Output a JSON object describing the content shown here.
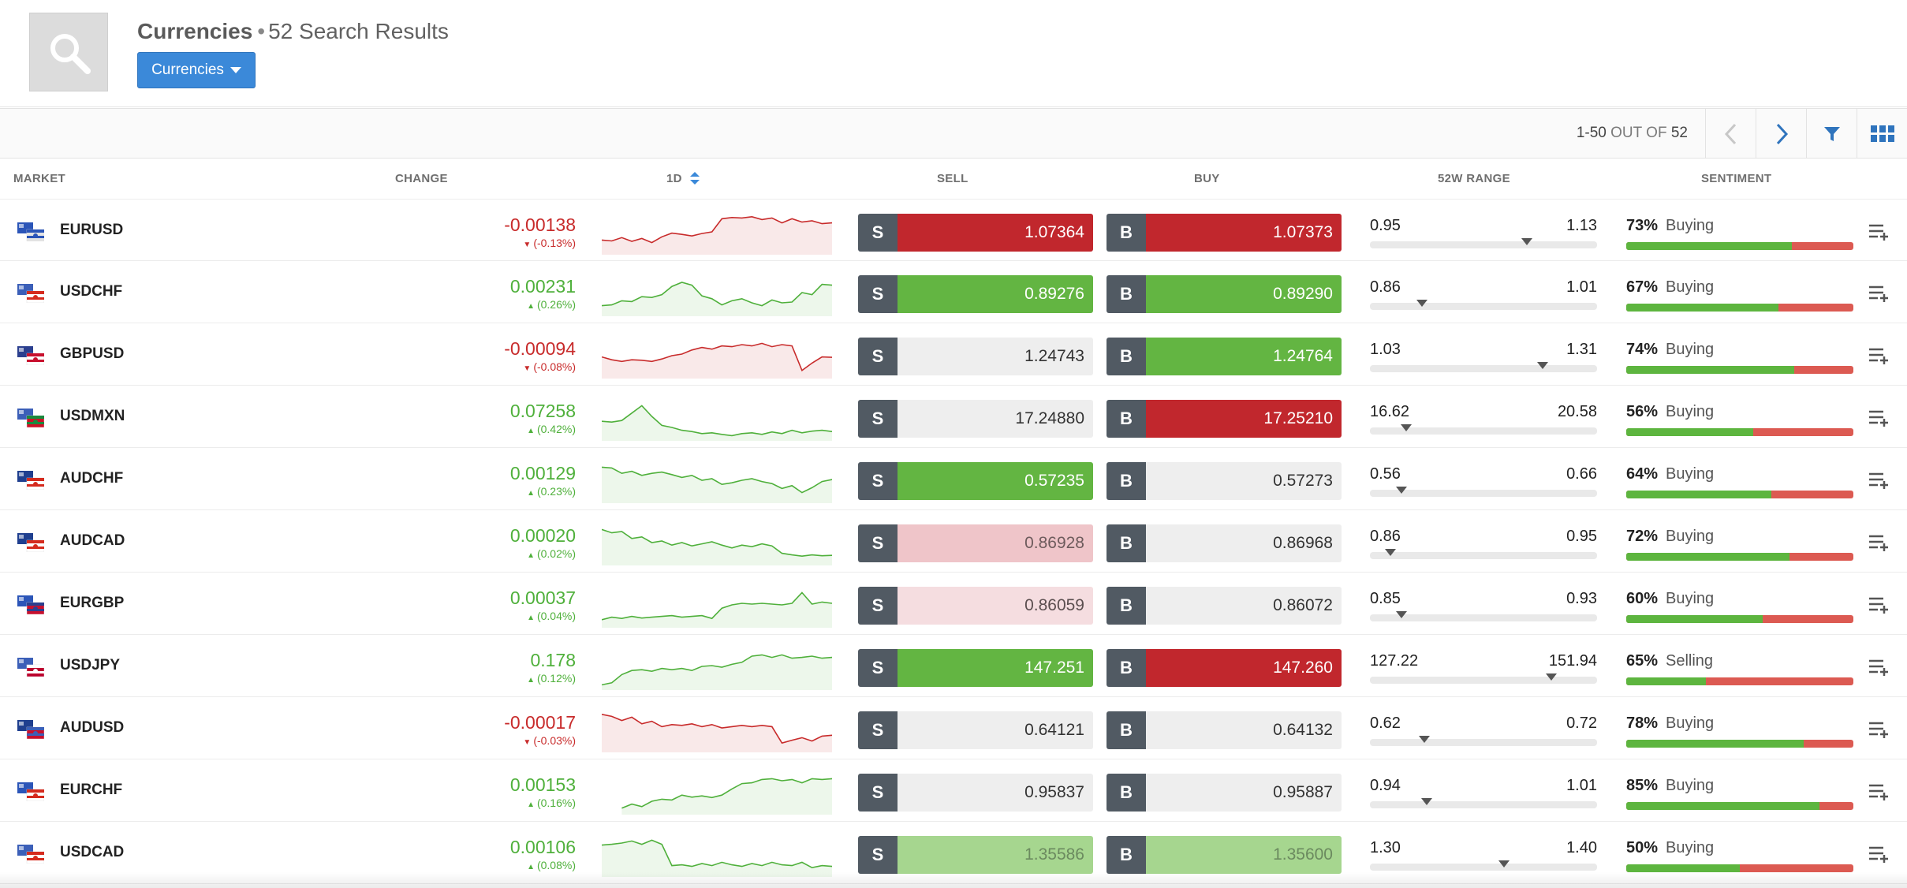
{
  "header": {
    "title": "Currencies",
    "result_count_text": "52 Search Results",
    "dropdown_label": "Currencies"
  },
  "toolbar": {
    "range": "1-50",
    "out_of_label": "OUT OF",
    "total": "52"
  },
  "columns": {
    "market": "MARKET",
    "change": "CHANGE",
    "period": "1D",
    "sell": "SELL",
    "buy": "BUY",
    "range": "52W RANGE",
    "sentiment": "SENTIMENT"
  },
  "colors": {
    "up": "#4fb03b",
    "down": "#c82b2b",
    "accent": "#3b89d9"
  },
  "rows": [
    {
      "symbol": "EURUSD",
      "change": "-0.00138",
      "change_pct": "(-0.13%)",
      "dir": "down",
      "sell_label": "S",
      "sell": "1.07364",
      "sell_state": "red",
      "buy_label": "B",
      "buy": "1.07373",
      "buy_state": "red",
      "range_low": "0.95",
      "range_high": "1.13",
      "range_pos": 0.69,
      "sentiment_pct": "73%",
      "sentiment_word": "Buying",
      "sentiment_value": 0.73,
      "spark": [
        0.72,
        0.74,
        0.66,
        0.75,
        0.68,
        0.78,
        0.64,
        0.55,
        0.58,
        0.62,
        0.56,
        0.52,
        0.2,
        0.17,
        0.18,
        0.15,
        0.22,
        0.18,
        0.3,
        0.2,
        0.28,
        0.25,
        0.32,
        0.3
      ]
    },
    {
      "symbol": "USDCHF",
      "change": "0.00231",
      "change_pct": "(0.26%)",
      "dir": "up",
      "sell_label": "S",
      "sell": "0.89276",
      "sell_state": "green",
      "buy_label": "B",
      "buy": "0.89290",
      "buy_state": "green",
      "range_low": "0.86",
      "range_high": "1.01",
      "range_pos": 0.23,
      "sentiment_pct": "67%",
      "sentiment_word": "Buying",
      "sentiment_value": 0.67,
      "spark": [
        0.82,
        0.8,
        0.7,
        0.72,
        0.6,
        0.62,
        0.55,
        0.35,
        0.25,
        0.32,
        0.58,
        0.65,
        0.8,
        0.7,
        0.65,
        0.75,
        0.82,
        0.68,
        0.75,
        0.73,
        0.5,
        0.55,
        0.3,
        0.32
      ]
    },
    {
      "symbol": "GBPUSD",
      "change": "-0.00094",
      "change_pct": "(-0.08%)",
      "dir": "down",
      "sell_label": "S",
      "sell": "1.24743",
      "sell_state": "grey",
      "buy_label": "B",
      "buy": "1.24764",
      "buy_state": "green",
      "range_low": "1.03",
      "range_high": "1.31",
      "range_pos": 0.76,
      "sentiment_pct": "74%",
      "sentiment_word": "Buying",
      "sentiment_value": 0.74,
      "spark": [
        0.55,
        0.62,
        0.66,
        0.62,
        0.63,
        0.66,
        0.6,
        0.52,
        0.48,
        0.38,
        0.32,
        0.36,
        0.28,
        0.3,
        0.25,
        0.28,
        0.22,
        0.3,
        0.25,
        0.28,
        0.88,
        0.7,
        0.55,
        0.56
      ]
    },
    {
      "symbol": "USDMXN",
      "change": "0.07258",
      "change_pct": "(0.42%)",
      "dir": "up",
      "sell_label": "S",
      "sell": "17.24880",
      "sell_state": "grey",
      "buy_label": "B",
      "buy": "17.25210",
      "buy_state": "red",
      "range_low": "16.62",
      "range_high": "20.58",
      "range_pos": 0.16,
      "sentiment_pct": "56%",
      "sentiment_word": "Buying",
      "sentiment_value": 0.56,
      "spark": [
        0.6,
        0.62,
        0.58,
        0.4,
        0.22,
        0.48,
        0.7,
        0.75,
        0.82,
        0.85,
        0.9,
        0.88,
        0.92,
        0.95,
        0.9,
        0.88,
        0.92,
        0.86,
        0.9,
        0.82,
        0.88,
        0.84,
        0.82,
        0.85
      ]
    },
    {
      "symbol": "AUDCHF",
      "change": "0.00129",
      "change_pct": "(0.23%)",
      "dir": "up",
      "sell_label": "S",
      "sell": "0.57235",
      "sell_state": "green",
      "buy_label": "B",
      "buy": "0.57273",
      "buy_state": "grey",
      "range_low": "0.56",
      "range_high": "0.66",
      "range_pos": 0.14,
      "sentiment_pct": "64%",
      "sentiment_word": "Buying",
      "sentiment_value": 0.64,
      "spark": [
        0.2,
        0.22,
        0.35,
        0.3,
        0.4,
        0.35,
        0.32,
        0.38,
        0.45,
        0.4,
        0.52,
        0.48,
        0.62,
        0.58,
        0.52,
        0.48,
        0.55,
        0.6,
        0.72,
        0.65,
        0.82,
        0.7,
        0.55,
        0.5
      ]
    },
    {
      "symbol": "AUDCAD",
      "change": "0.00020",
      "change_pct": "(0.02%)",
      "dir": "up",
      "sell_label": "S",
      "sell": "0.86928",
      "sell_state": "pink",
      "buy_label": "B",
      "buy": "0.86968",
      "buy_state": "grey",
      "range_low": "0.86",
      "range_high": "0.95",
      "range_pos": 0.09,
      "sentiment_pct": "72%",
      "sentiment_word": "Buying",
      "sentiment_value": 0.72,
      "spark": [
        0.2,
        0.28,
        0.25,
        0.42,
        0.38,
        0.52,
        0.48,
        0.58,
        0.52,
        0.6,
        0.55,
        0.5,
        0.58,
        0.65,
        0.58,
        0.62,
        0.55,
        0.6,
        0.78,
        0.82,
        0.85,
        0.82,
        0.84,
        0.83
      ]
    },
    {
      "symbol": "EURGBP",
      "change": "0.00037",
      "change_pct": "(0.04%)",
      "dir": "up",
      "sell_label": "S",
      "sell": "0.86059",
      "sell_state": "pink2",
      "buy_label": "B",
      "buy": "0.86072",
      "buy_state": "grey",
      "range_low": "0.85",
      "range_high": "0.93",
      "range_pos": 0.14,
      "sentiment_pct": "60%",
      "sentiment_word": "Buying",
      "sentiment_value": 0.6,
      "spark": [
        0.88,
        0.82,
        0.85,
        0.8,
        0.84,
        0.82,
        0.8,
        0.78,
        0.82,
        0.8,
        0.78,
        0.85,
        0.6,
        0.52,
        0.48,
        0.5,
        0.48,
        0.5,
        0.52,
        0.48,
        0.22,
        0.5,
        0.45,
        0.48
      ]
    },
    {
      "symbol": "USDJPY",
      "change": "0.178",
      "change_pct": "(0.12%)",
      "dir": "up",
      "sell_label": "S",
      "sell": "147.251",
      "sell_state": "green",
      "buy_label": "B",
      "buy": "147.260",
      "buy_state": "red",
      "range_low": "127.22",
      "range_high": "151.94",
      "range_pos": 0.8,
      "sentiment_pct": "65%",
      "sentiment_word": "Selling",
      "sentiment_value": 0.35,
      "spark": [
        0.95,
        0.9,
        0.7,
        0.6,
        0.58,
        0.62,
        0.55,
        0.58,
        0.55,
        0.6,
        0.5,
        0.48,
        0.52,
        0.45,
        0.4,
        0.25,
        0.22,
        0.28,
        0.22,
        0.3,
        0.28,
        0.25,
        0.3,
        0.28
      ]
    },
    {
      "symbol": "AUDUSD",
      "change": "-0.00017",
      "change_pct": "(-0.03%)",
      "dir": "down",
      "sell_label": "S",
      "sell": "0.64121",
      "sell_state": "grey",
      "buy_label": "B",
      "buy": "0.64132",
      "buy_state": "grey",
      "range_low": "0.62",
      "range_high": "0.72",
      "range_pos": 0.24,
      "sentiment_pct": "78%",
      "sentiment_word": "Buying",
      "sentiment_value": 0.78,
      "spark": [
        0.15,
        0.2,
        0.3,
        0.22,
        0.38,
        0.32,
        0.45,
        0.4,
        0.42,
        0.38,
        0.45,
        0.4,
        0.48,
        0.45,
        0.42,
        0.45,
        0.42,
        0.45,
        0.85,
        0.78,
        0.72,
        0.8,
        0.68,
        0.66
      ]
    },
    {
      "symbol": "EURCHF",
      "change": "0.00153",
      "change_pct": "(0.16%)",
      "dir": "up",
      "sell_label": "S",
      "sell": "0.95837",
      "sell_state": "grey",
      "buy_label": "B",
      "buy": "0.95887",
      "buy_state": "grey",
      "range_low": "0.94",
      "range_high": "1.01",
      "range_pos": 0.25,
      "sentiment_pct": "85%",
      "sentiment_word": "Buying",
      "sentiment_value": 0.85,
      "spark": [
        null,
        null,
        0.92,
        0.82,
        0.88,
        0.75,
        0.7,
        0.72,
        0.6,
        0.65,
        0.62,
        0.66,
        0.6,
        0.45,
        0.32,
        0.3,
        0.22,
        0.2,
        0.25,
        0.22,
        0.3,
        0.2,
        0.22,
        0.2
      ]
    },
    {
      "symbol": "USDCAD",
      "change": "0.00106",
      "change_pct": "(0.08%)",
      "dir": "up",
      "sell_label": "S",
      "sell": "1.35586",
      "sell_state": "lgreen",
      "buy_label": "B",
      "buy": "1.35600",
      "buy_state": "lgreen",
      "range_low": "1.30",
      "range_high": "1.40",
      "range_pos": 0.59,
      "sentiment_pct": "50%",
      "sentiment_word": "Buying",
      "sentiment_value": 0.5,
      "spark": [
        0.3,
        0.28,
        0.25,
        0.2,
        0.28,
        0.18,
        0.28,
        0.8,
        0.78,
        0.82,
        0.75,
        0.8,
        0.72,
        0.78,
        0.82,
        0.75,
        0.8,
        0.72,
        0.78,
        0.8,
        0.72,
        0.85,
        0.8,
        0.82
      ]
    }
  ]
}
